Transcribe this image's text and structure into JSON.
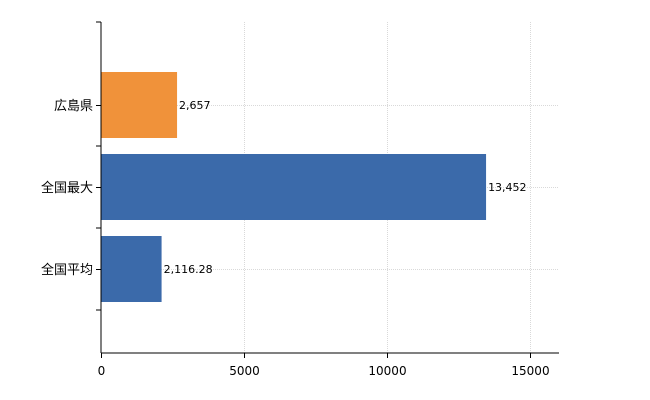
{
  "chart_data": {
    "type": "bar",
    "orientation": "horizontal",
    "categories": [
      "広島県",
      "全国最大",
      "全国平均"
    ],
    "values": [
      2657,
      13452,
      2116.28
    ],
    "value_labels": [
      "2,657",
      "13,452",
      "2,116.28"
    ],
    "bar_colors": [
      "#f0923a",
      "#3b6aaa",
      "#3b6aaa"
    ],
    "xlim": [
      0,
      16000
    ],
    "x_ticks": [
      0,
      5000,
      10000,
      15000
    ],
    "x_tick_labels": [
      "0",
      "5000",
      "10000",
      "15000"
    ],
    "grid": true,
    "legend": "none"
  }
}
